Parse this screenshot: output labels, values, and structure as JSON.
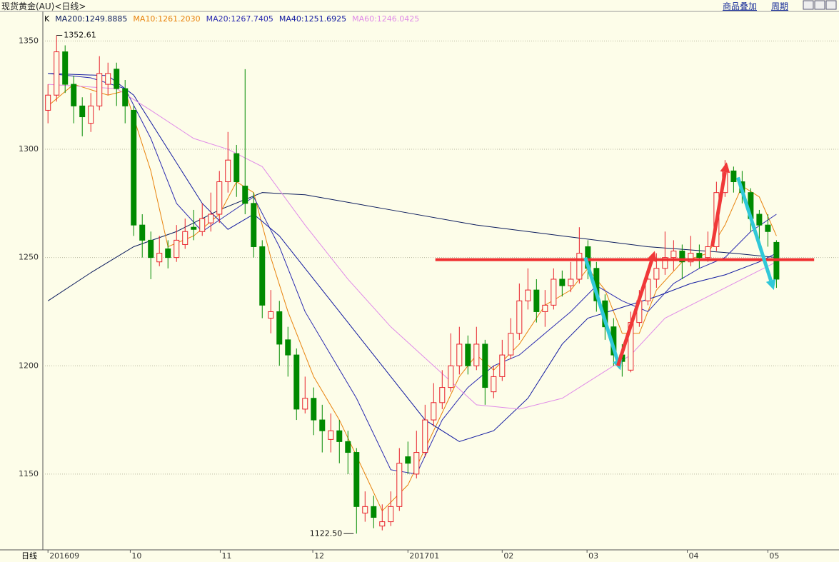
{
  "header": {
    "title": "现货黄金(AU)<日线>",
    "links": [
      "商品叠加",
      "周期"
    ]
  },
  "chart_data": {
    "type": "candlestick",
    "period_label": "日线",
    "legend_prefix": "K",
    "up_color": "#e8202a",
    "down_color": "#008a00",
    "ylim": [
      1115,
      1363
    ],
    "yticks": [
      1150,
      1200,
      1250,
      1300,
      1350
    ],
    "grid": true,
    "xlim": [
      -0.6,
      92.3
    ],
    "xticks": [
      {
        "value": 0,
        "label": "201609"
      },
      {
        "value": 9.6,
        "label": "10"
      },
      {
        "value": 20.1,
        "label": "11"
      },
      {
        "value": 30.9,
        "label": "12"
      },
      {
        "value": 42,
        "label": "201701"
      },
      {
        "value": 53,
        "label": "02"
      },
      {
        "value": 62.9,
        "label": "03"
      },
      {
        "value": 74.6,
        "label": "04"
      },
      {
        "value": 84,
        "label": "05"
      }
    ],
    "candles": [
      [
        1318,
        1330,
        1312,
        1325
      ],
      [
        1325,
        1352.61,
        1322,
        1345
      ],
      [
        1345,
        1348,
        1326,
        1330
      ],
      [
        1330,
        1334,
        1312,
        1320
      ],
      [
        1320,
        1324,
        1306,
        1315
      ],
      [
        1312,
        1326,
        1308,
        1320
      ],
      [
        1320,
        1343,
        1318,
        1335
      ],
      [
        1330,
        1340,
        1325,
        1335
      ],
      [
        1337,
        1340,
        1320,
        1328
      ],
      [
        1328,
        1332,
        1312,
        1320
      ],
      [
        1318,
        1320,
        1260,
        1265
      ],
      [
        1265,
        1270,
        1250,
        1258
      ],
      [
        1258,
        1262,
        1240,
        1250
      ],
      [
        1248,
        1260,
        1246,
        1252
      ],
      [
        1254,
        1258,
        1245,
        1250
      ],
      [
        1250,
        1265,
        1248,
        1258
      ],
      [
        1256,
        1268,
        1254,
        1262
      ],
      [
        1264,
        1272,
        1258,
        1263
      ],
      [
        1262,
        1275,
        1260,
        1268
      ],
      [
        1266,
        1280,
        1262,
        1270
      ],
      [
        1270,
        1290,
        1266,
        1285
      ],
      [
        1285,
        1308,
        1280,
        1295
      ],
      [
        1298,
        1302,
        1278,
        1285
      ],
      [
        1283,
        1337,
        1270,
        1275
      ],
      [
        1275,
        1280,
        1250,
        1255
      ],
      [
        1255,
        1258,
        1222,
        1228
      ],
      [
        1222,
        1235,
        1215,
        1225
      ],
      [
        1225,
        1230,
        1200,
        1210
      ],
      [
        1212,
        1218,
        1195,
        1205
      ],
      [
        1205,
        1208,
        1175,
        1180
      ],
      [
        1180,
        1195,
        1178,
        1185
      ],
      [
        1185,
        1190,
        1168,
        1175
      ],
      [
        1175,
        1182,
        1160,
        1170
      ],
      [
        1166,
        1178,
        1160,
        1170
      ],
      [
        1170,
        1175,
        1155,
        1165
      ],
      [
        1165,
        1170,
        1150,
        1160
      ],
      [
        1160,
        1162,
        1122.5,
        1135
      ],
      [
        1132,
        1142,
        1128,
        1135
      ],
      [
        1135,
        1140,
        1125,
        1130
      ],
      [
        1126,
        1136,
        1124,
        1128
      ],
      [
        1128,
        1142,
        1126,
        1135
      ],
      [
        1135,
        1162,
        1133,
        1155
      ],
      [
        1158,
        1165,
        1150,
        1155
      ],
      [
        1150,
        1170,
        1148,
        1160
      ],
      [
        1160,
        1182,
        1158,
        1175
      ],
      [
        1175,
        1192,
        1172,
        1183
      ],
      [
        1183,
        1198,
        1180,
        1190
      ],
      [
        1190,
        1215,
        1188,
        1200
      ],
      [
        1200,
        1218,
        1196,
        1210
      ],
      [
        1210,
        1214,
        1196,
        1200
      ],
      [
        1200,
        1218,
        1198,
        1210
      ],
      [
        1210,
        1212,
        1182,
        1190
      ],
      [
        1188,
        1200,
        1185,
        1195
      ],
      [
        1195,
        1212,
        1193,
        1205
      ],
      [
        1205,
        1222,
        1203,
        1215
      ],
      [
        1215,
        1238,
        1212,
        1230
      ],
      [
        1230,
        1245,
        1226,
        1235
      ],
      [
        1235,
        1240,
        1220,
        1225
      ],
      [
        1225,
        1235,
        1218,
        1228
      ],
      [
        1228,
        1245,
        1226,
        1240
      ],
      [
        1240,
        1244,
        1232,
        1237
      ],
      [
        1237,
        1248,
        1234,
        1240
      ],
      [
        1240,
        1264,
        1238,
        1252
      ],
      [
        1255,
        1258,
        1240,
        1245
      ],
      [
        1245,
        1248,
        1225,
        1230
      ],
      [
        1230,
        1233,
        1212,
        1218
      ],
      [
        1218,
        1222,
        1200,
        1205
      ],
      [
        1205,
        1210,
        1195,
        1202
      ],
      [
        1198,
        1225,
        1197,
        1220
      ],
      [
        1220,
        1235,
        1218,
        1230
      ],
      [
        1230,
        1245,
        1228,
        1240
      ],
      [
        1240,
        1252,
        1236,
        1245
      ],
      [
        1245,
        1262,
        1242,
        1250
      ],
      [
        1250,
        1258,
        1244,
        1253
      ],
      [
        1253,
        1256,
        1240,
        1248
      ],
      [
        1248,
        1260,
        1246,
        1252
      ],
      [
        1252,
        1256,
        1245,
        1250
      ],
      [
        1250,
        1262,
        1248,
        1255
      ],
      [
        1255,
        1285,
        1253,
        1280
      ],
      [
        1280,
        1295,
        1278,
        1290
      ],
      [
        1290,
        1292,
        1280,
        1285
      ],
      [
        1285,
        1290,
        1275,
        1280
      ],
      [
        1280,
        1282,
        1262,
        1268
      ],
      [
        1270,
        1272,
        1258,
        1265
      ],
      [
        1265,
        1270,
        1255,
        1262
      ],
      [
        1257,
        1258,
        1236,
        1240
      ]
    ],
    "series": [
      {
        "name": "MA200:1249.8885",
        "color": "#0a1a5c",
        "x": [
          0,
          5,
          10,
          15,
          20,
          25,
          30,
          40,
          50,
          60,
          70,
          80,
          85
        ],
        "values": [
          1230,
          1243,
          1255,
          1262,
          1272,
          1280,
          1279,
          1272,
          1265,
          1260,
          1255,
          1252,
          1250
        ]
      },
      {
        "name": "MA10:1261.2030",
        "color": "#e8820c",
        "x": [
          0,
          3,
          7,
          9,
          12,
          14,
          17,
          20,
          22,
          24,
          26,
          28,
          31,
          34,
          37,
          39,
          42,
          45,
          48,
          50,
          52,
          55,
          58,
          61,
          63,
          65,
          67,
          69,
          71,
          74,
          77,
          79,
          81,
          83,
          85
        ],
        "values": [
          1320,
          1330,
          1325,
          1327,
          1290,
          1255,
          1260,
          1270,
          1285,
          1280,
          1250,
          1225,
          1195,
          1175,
          1150,
          1133,
          1145,
          1170,
          1195,
          1205,
          1198,
          1210,
          1228,
          1235,
          1245,
          1235,
          1215,
          1215,
          1235,
          1248,
          1252,
          1265,
          1283,
          1278,
          1260
        ]
      },
      {
        "name": "MA20:1267.7405",
        "color": "#2a2ab0",
        "x": [
          0,
          5,
          9,
          12,
          15,
          18,
          21,
          24,
          27,
          30,
          33,
          36,
          40,
          43,
          46,
          49,
          52,
          55,
          58,
          61,
          64,
          67,
          70,
          73,
          76,
          79,
          82,
          85
        ],
        "values": [
          1335,
          1333,
          1328,
          1305,
          1275,
          1262,
          1270,
          1278,
          1255,
          1225,
          1205,
          1185,
          1152,
          1150,
          1175,
          1190,
          1200,
          1205,
          1215,
          1225,
          1237,
          1230,
          1225,
          1238,
          1245,
          1250,
          1262,
          1270
        ]
      },
      {
        "name": "MA40:1251.6925",
        "color": "#1018a0",
        "x": [
          0,
          7,
          10,
          14,
          18,
          21,
          24,
          27,
          31,
          35,
          40,
          44,
          48,
          52,
          56,
          60,
          63,
          67,
          71,
          75,
          79,
          83,
          85
        ],
        "values": [
          1335,
          1334,
          1325,
          1300,
          1275,
          1263,
          1270,
          1260,
          1240,
          1220,
          1195,
          1175,
          1165,
          1170,
          1185,
          1210,
          1222,
          1227,
          1232,
          1238,
          1242,
          1248,
          1252
        ]
      },
      {
        "name": "MA60:1246.0425",
        "color": "#e08ae8",
        "x": [
          0,
          8,
          12,
          17,
          21,
          25,
          30,
          35,
          40,
          45,
          50,
          55,
          60,
          64,
          68,
          72,
          76,
          80,
          85
        ],
        "values": [
          1330,
          1328,
          1318,
          1305,
          1300,
          1292,
          1265,
          1240,
          1218,
          1200,
          1182,
          1180,
          1185,
          1195,
          1205,
          1222,
          1230,
          1238,
          1248
        ]
      }
    ],
    "high_label": 1352.61,
    "low_label": {
      "value": 1122.5,
      "label": "1122.50"
    },
    "hline": {
      "value": 1249,
      "x": [
        45.2,
        89.4
      ],
      "color": "#f03030"
    },
    "arrows": [
      {
        "color": "#30c8d8",
        "x": [
          62.7,
          66.8
        ],
        "y": [
          1250,
          1198
        ]
      },
      {
        "color": "#f03838",
        "x": [
          66.5,
          70.8
        ],
        "y": [
          1200,
          1253
        ]
      },
      {
        "color": "#f03838",
        "x": [
          77.5,
          79.2
        ],
        "y": [
          1255,
          1294
        ]
      },
      {
        "color": "#30c8d8",
        "x": [
          80.5,
          84.7
        ],
        "y": [
          1287,
          1235
        ]
      }
    ]
  }
}
